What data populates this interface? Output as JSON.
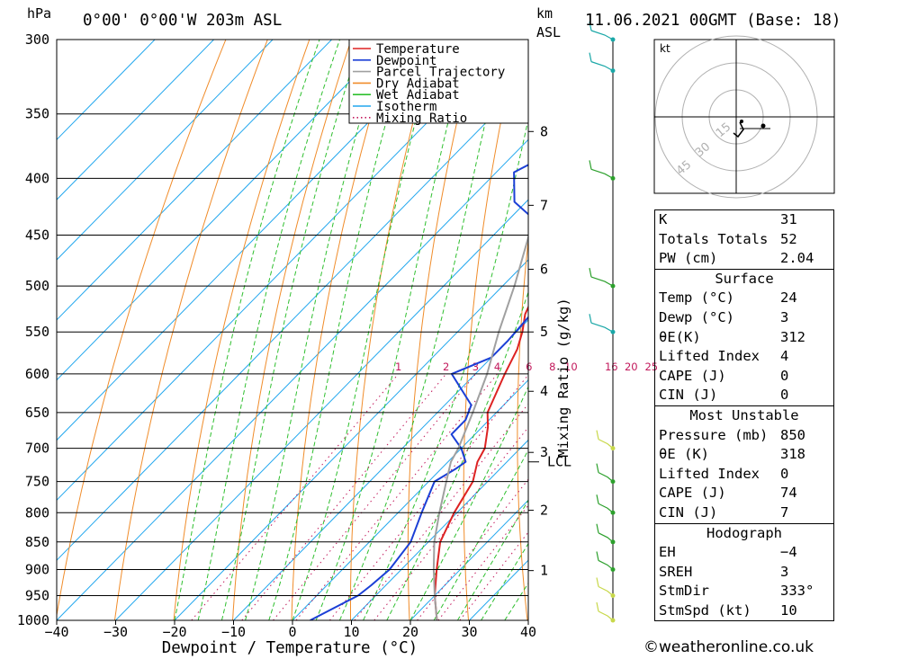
{
  "header": {
    "location": "0°00' 0°00'W 203m ASL",
    "datetime": "11.06.2021 00GMT (Base: 18)",
    "pressure_unit": "hPa",
    "height_unit": "km",
    "height_unit2": "ASL"
  },
  "chart_data": {
    "type": "line",
    "title": "0°00' 0°00'W 203m ASL",
    "xlabel": "Dewpoint / Temperature (°C)",
    "ylabel": "hPa",
    "y2label": "Mixing Ratio (g/kg)",
    "xlim": [
      -40,
      40
    ],
    "ylim": [
      1000,
      300
    ],
    "y_scale": "log",
    "x_ticks": [
      "−40",
      "−30",
      "−20",
      "−10",
      "0",
      "10",
      "20",
      "30",
      "40"
    ],
    "pressure_levels": [
      300,
      350,
      400,
      450,
      500,
      550,
      600,
      650,
      700,
      750,
      800,
      850,
      900,
      950,
      1000
    ],
    "height_km_ticks": [
      {
        "label": "1",
        "p": 902
      },
      {
        "label": "2",
        "p": 796
      },
      {
        "label": "3",
        "p": 706
      },
      {
        "label": "4",
        "p": 622
      },
      {
        "label": "5",
        "p": 550
      },
      {
        "label": "6",
        "p": 483
      },
      {
        "label": "7",
        "p": 423
      },
      {
        "label": "8",
        "p": 363
      }
    ],
    "lcl": {
      "label": "LCL",
      "p": 720
    },
    "mixing_ratio_labels": [
      "1",
      "2",
      "3",
      "4",
      "6",
      "8",
      "10",
      "16",
      "20",
      "25"
    ],
    "legend": [
      "Temperature",
      "Dewpoint",
      "Parcel Trajectory",
      "Dry Adiabat",
      "Wet Adiabat",
      "Isotherm",
      "Mixing Ratio"
    ],
    "legend_position": "top-right",
    "series": [
      {
        "name": "Temperature",
        "color": "#dd2222",
        "points": [
          [
            1000,
            24.5
          ],
          [
            950,
            20
          ],
          [
            900,
            16
          ],
          [
            850,
            12
          ],
          [
            800,
            9.5
          ],
          [
            750,
            7.5
          ],
          [
            720,
            5
          ],
          [
            700,
            4
          ],
          [
            670,
            1
          ],
          [
            650,
            -1.5
          ],
          [
            600,
            -5
          ],
          [
            570,
            -7
          ],
          [
            550,
            -9
          ],
          [
            530,
            -11.5
          ],
          [
            500,
            -14
          ],
          [
            480,
            -16
          ],
          [
            450,
            -19
          ],
          [
            430,
            -22
          ],
          [
            400,
            -26
          ],
          [
            380,
            -29.5
          ],
          [
            350,
            -35
          ],
          [
            330,
            -39.5
          ],
          [
            300,
            -46
          ]
        ]
      },
      {
        "name": "Dewpoint",
        "color": "#1b3fd6",
        "points": [
          [
            1000,
            3
          ],
          [
            950,
            7
          ],
          [
            930,
            7.5
          ],
          [
            900,
            8
          ],
          [
            850,
            7
          ],
          [
            800,
            4
          ],
          [
            750,
            1
          ],
          [
            730,
            2.5
          ],
          [
            720,
            3
          ],
          [
            700,
            0
          ],
          [
            680,
            -4
          ],
          [
            660,
            -4
          ],
          [
            640,
            -5.5
          ],
          [
            600,
            -14
          ],
          [
            580,
            -10
          ],
          [
            560,
            -10
          ],
          [
            530,
            -10.5
          ],
          [
            510,
            -11.5
          ],
          [
            500,
            -12.5
          ],
          [
            470,
            -17
          ],
          [
            440,
            -24
          ],
          [
            420,
            -32
          ],
          [
            395,
            -37
          ],
          [
            385,
            -35
          ],
          [
            375,
            -31
          ],
          [
            355,
            -42
          ],
          [
            340,
            -46
          ],
          [
            330,
            -50
          ],
          [
            300,
            -52
          ]
        ]
      },
      {
        "name": "Parcel Trajectory",
        "color": "#a0a0a0",
        "points": [
          [
            1000,
            24.5
          ],
          [
            950,
            20
          ],
          [
            900,
            15.5
          ],
          [
            850,
            11
          ],
          [
            800,
            7
          ],
          [
            750,
            3
          ],
          [
            720,
            0.5
          ],
          [
            700,
            -0.5
          ],
          [
            650,
            -4
          ],
          [
            600,
            -8
          ],
          [
            550,
            -13
          ],
          [
            500,
            -18
          ],
          [
            450,
            -24
          ],
          [
            400,
            -30.5
          ],
          [
            350,
            -38
          ],
          [
            300,
            -48
          ]
        ]
      }
    ],
    "wind_barbs_p": [
      300,
      320,
      400,
      500,
      550,
      700,
      750,
      800,
      850,
      900,
      950,
      1000
    ]
  },
  "hodograph": {
    "unit": "kt",
    "ring_labels": [
      "15",
      "30",
      "45"
    ]
  },
  "indices": {
    "k_label": "K",
    "k_value": "31",
    "tt_label": "Totals Totals",
    "tt_value": "52",
    "pw_label": "PW (cm)",
    "pw_value": "2.04",
    "surface": {
      "title": "Surface",
      "temp_label": "Temp (°C)",
      "temp_value": "24",
      "dewp_label": "Dewp (°C)",
      "dewp_value": "3",
      "theta_label": "θE(K)",
      "theta_value": "312",
      "li_label": "Lifted Index",
      "li_value": "4",
      "cape_label": "CAPE (J)",
      "cape_value": "0",
      "cin_label": "CIN (J)",
      "cin_value": "0"
    },
    "mu": {
      "title": "Most Unstable",
      "p_label": "Pressure (mb)",
      "p_value": "850",
      "theta_label": "θE (K)",
      "theta_value": "318",
      "li_label": "Lifted Index",
      "li_value": "0",
      "cape_label": "CAPE (J)",
      "cape_value": "74",
      "cin_label": "CIN (J)",
      "cin_value": "7"
    },
    "hodo": {
      "title": "Hodograph",
      "eh_label": "EH",
      "eh_value": "−4",
      "sreh_label": "SREH",
      "sreh_value": "3",
      "dir_label": "StmDir",
      "dir_value": "333°",
      "spd_label": "StmSpd (kt)",
      "spd_value": "10"
    }
  },
  "footer": "©weatheronline.co.uk"
}
